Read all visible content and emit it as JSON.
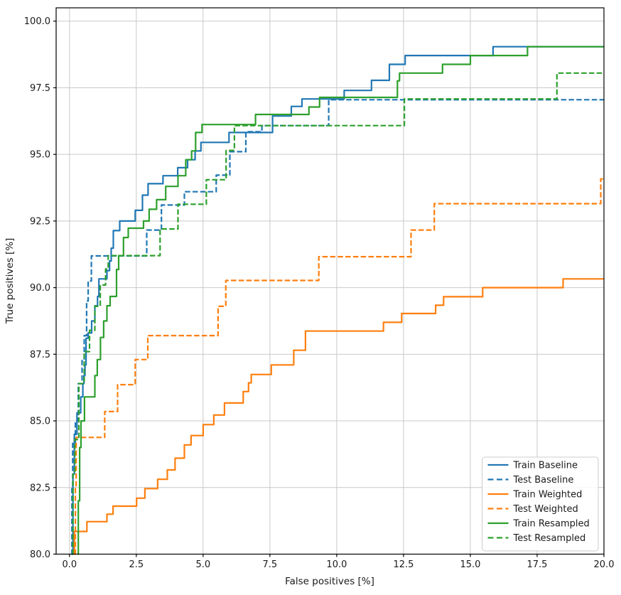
{
  "figure": {
    "background": "#ffffff",
    "grid_color": "#c9c9c9",
    "spine_color": "#000000",
    "tick_color": "#000000",
    "text_color": "#1a1a1a",
    "legend_border_color": "#cccccc",
    "legend_background": "#ffffff"
  },
  "chart_data": {
    "type": "line",
    "subtype": "roc-step-curves",
    "title": "",
    "xlabel": "False positives [%]",
    "ylabel": "True positives [%]",
    "xlim": [
      -0.5,
      20
    ],
    "ylim": [
      80,
      100.5
    ],
    "grid": true,
    "legend_position": "lower right",
    "x_ticks": [
      0,
      2.5,
      5,
      7.5,
      10,
      12.5,
      15,
      17.5,
      20
    ],
    "x_tick_labels": [
      "0.0",
      "2.5",
      "5.0",
      "7.5",
      "10.0",
      "12.5",
      "15.0",
      "17.5",
      "20.0"
    ],
    "y_ticks": [
      80,
      82.5,
      85,
      87.5,
      90,
      92.5,
      95,
      97.5,
      100
    ],
    "y_tick_labels": [
      "80.0",
      "82.5",
      "85.0",
      "87.5",
      "90.0",
      "92.5",
      "95.0",
      "97.5",
      "100.0"
    ],
    "series": [
      {
        "name": "Train Baseline",
        "color": "#1f77b4",
        "style": "solid",
        "linewidth": 2.2,
        "points": [
          [
            0.1,
            80
          ],
          [
            0.13,
            83.0
          ],
          [
            0.18,
            84.5
          ],
          [
            0.28,
            85.3
          ],
          [
            0.42,
            85.9
          ],
          [
            0.5,
            86.4
          ],
          [
            0.54,
            86.7
          ],
          [
            0.58,
            87.1
          ],
          [
            0.62,
            88.1
          ],
          [
            0.7,
            88.3
          ],
          [
            0.83,
            88.75
          ],
          [
            0.95,
            89.32
          ],
          [
            1.05,
            89.67
          ],
          [
            1.1,
            90.33
          ],
          [
            1.4,
            90.64
          ],
          [
            1.5,
            91.0
          ],
          [
            1.56,
            91.48
          ],
          [
            1.64,
            92.14
          ],
          [
            1.88,
            92.5
          ],
          [
            2.46,
            92.9
          ],
          [
            2.73,
            93.47
          ],
          [
            2.94,
            93.9
          ],
          [
            3.5,
            94.2
          ],
          [
            4.05,
            94.5
          ],
          [
            4.42,
            94.8
          ],
          [
            4.7,
            95.13
          ],
          [
            4.92,
            95.45
          ],
          [
            5.97,
            95.82
          ],
          [
            7.6,
            96.44
          ],
          [
            8.3,
            96.8
          ],
          [
            8.7,
            97.08
          ],
          [
            10.28,
            97.4
          ],
          [
            11.3,
            97.78
          ],
          [
            11.97,
            98.38
          ],
          [
            12.56,
            98.71
          ],
          [
            15.85,
            99.04
          ],
          [
            20,
            99.04
          ]
        ]
      },
      {
        "name": "Test Baseline",
        "color": "#1f77b4",
        "style": "dashed",
        "linewidth": 2.2,
        "points": [
          [
            0.07,
            80
          ],
          [
            0.09,
            82.5
          ],
          [
            0.12,
            84.2
          ],
          [
            0.22,
            85.0
          ],
          [
            0.33,
            86.4
          ],
          [
            0.47,
            87.32
          ],
          [
            0.55,
            88.2
          ],
          [
            0.64,
            89.5
          ],
          [
            0.7,
            90.25
          ],
          [
            0.82,
            91.19
          ],
          [
            2.89,
            92.16
          ],
          [
            3.44,
            93.1
          ],
          [
            4.3,
            93.6
          ],
          [
            5.49,
            94.22
          ],
          [
            6.0,
            95.1
          ],
          [
            6.6,
            95.85
          ],
          [
            7.2,
            96.08
          ],
          [
            9.7,
            97.05
          ],
          [
            20,
            97.05
          ]
        ]
      },
      {
        "name": "Train Weighted",
        "color": "#ff7f0e",
        "style": "solid",
        "linewidth": 2.2,
        "points": [
          [
            0.17,
            80
          ],
          [
            0.18,
            80.85
          ],
          [
            0.65,
            81.22
          ],
          [
            1.4,
            81.5
          ],
          [
            1.63,
            81.8
          ],
          [
            2.51,
            82.1
          ],
          [
            2.82,
            82.46
          ],
          [
            3.3,
            82.81
          ],
          [
            3.66,
            83.16
          ],
          [
            3.95,
            83.6
          ],
          [
            4.3,
            84.1
          ],
          [
            4.55,
            84.45
          ],
          [
            5.0,
            84.86
          ],
          [
            5.4,
            85.22
          ],
          [
            5.8,
            85.67
          ],
          [
            6.5,
            86.1
          ],
          [
            6.7,
            86.43
          ],
          [
            6.8,
            86.74
          ],
          [
            7.55,
            87.1
          ],
          [
            8.39,
            87.65
          ],
          [
            8.83,
            88.37
          ],
          [
            11.75,
            88.7
          ],
          [
            12.43,
            89.03
          ],
          [
            13.7,
            89.34
          ],
          [
            14.0,
            89.66
          ],
          [
            15.46,
            90.0
          ],
          [
            18.47,
            90.33
          ],
          [
            20,
            90.33
          ]
        ]
      },
      {
        "name": "Test Weighted",
        "color": "#ff7f0e",
        "style": "dashed",
        "linewidth": 2.2,
        "points": [
          [
            0.2,
            80
          ],
          [
            0.22,
            82.5
          ],
          [
            0.25,
            84.38
          ],
          [
            1.32,
            85.35
          ],
          [
            1.8,
            86.36
          ],
          [
            2.46,
            87.3
          ],
          [
            2.93,
            88.2
          ],
          [
            5.56,
            89.3
          ],
          [
            5.85,
            90.27
          ],
          [
            9.33,
            91.16
          ],
          [
            12.78,
            92.16
          ],
          [
            13.65,
            93.15
          ],
          [
            19.88,
            94.08
          ],
          [
            20,
            94.08
          ]
        ]
      },
      {
        "name": "Train Resampled",
        "color": "#2ca02c",
        "style": "solid",
        "linewidth": 2.2,
        "points": [
          [
            0.3,
            80
          ],
          [
            0.33,
            82.0
          ],
          [
            0.38,
            84.0
          ],
          [
            0.43,
            85.0
          ],
          [
            0.56,
            85.9
          ],
          [
            0.95,
            86.7
          ],
          [
            1.04,
            87.3
          ],
          [
            1.16,
            88.13
          ],
          [
            1.28,
            88.75
          ],
          [
            1.4,
            89.32
          ],
          [
            1.52,
            89.67
          ],
          [
            1.76,
            90.68
          ],
          [
            1.84,
            91.2
          ],
          [
            2.02,
            91.88
          ],
          [
            2.2,
            92.23
          ],
          [
            2.77,
            92.5
          ],
          [
            2.98,
            92.94
          ],
          [
            3.26,
            93.3
          ],
          [
            3.6,
            93.8
          ],
          [
            4.06,
            94.2
          ],
          [
            4.35,
            94.8
          ],
          [
            4.57,
            95.13
          ],
          [
            4.72,
            95.82
          ],
          [
            4.96,
            96.12
          ],
          [
            6.96,
            96.5
          ],
          [
            8.96,
            96.78
          ],
          [
            9.36,
            97.14
          ],
          [
            12.27,
            97.76
          ],
          [
            12.35,
            98.05
          ],
          [
            13.96,
            98.38
          ],
          [
            15.0,
            98.71
          ],
          [
            17.14,
            99.04
          ],
          [
            20,
            99.04
          ]
        ]
      },
      {
        "name": "Test Resampled",
        "color": "#2ca02c",
        "style": "dashed",
        "linewidth": 2.2,
        "points": [
          [
            0.1,
            80
          ],
          [
            0.13,
            83.0
          ],
          [
            0.2,
            84.3
          ],
          [
            0.35,
            86.4
          ],
          [
            0.55,
            87.6
          ],
          [
            0.75,
            88.4
          ],
          [
            0.95,
            89.3
          ],
          [
            1.15,
            90.1
          ],
          [
            1.35,
            90.7
          ],
          [
            1.45,
            91.2
          ],
          [
            3.39,
            92.2
          ],
          [
            4.06,
            93.13
          ],
          [
            5.12,
            94.05
          ],
          [
            5.86,
            95.15
          ],
          [
            6.17,
            96.08
          ],
          [
            12.53,
            97.08
          ],
          [
            18.24,
            98.05
          ],
          [
            20,
            98.05
          ]
        ]
      }
    ]
  }
}
